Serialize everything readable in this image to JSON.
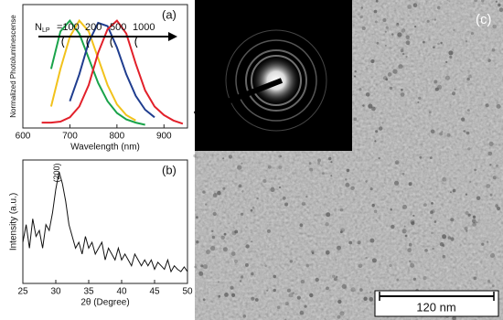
{
  "chart_data": [
    {
      "type": "line",
      "panel_label": "(a)",
      "x_label": "Wavelength (nm)",
      "y_label": "Normalized Photoluminescense",
      "annotation": {
        "symbol": "N",
        "subscript": "LP",
        "values": [
          "=100",
          "200",
          "500",
          "1000"
        ]
      },
      "x": [
        640,
        660,
        680,
        700,
        720,
        740,
        760,
        780,
        800,
        820,
        840,
        860,
        880,
        900,
        920,
        940
      ],
      "series": [
        {
          "color": "#1aa34a",
          "values": [
            null,
            0.55,
            0.9,
            1.0,
            0.88,
            0.65,
            0.42,
            0.25,
            0.14,
            0.08,
            0.05,
            0.03,
            null,
            null,
            null,
            null
          ]
        },
        {
          "color": "#f2c21b",
          "values": [
            null,
            0.2,
            0.55,
            0.85,
            1.0,
            0.9,
            0.65,
            0.4,
            0.22,
            0.12,
            0.07,
            null,
            null,
            null,
            null,
            null
          ]
        },
        {
          "color": "#1f3d8f",
          "values": [
            null,
            null,
            null,
            0.25,
            0.5,
            0.8,
            0.98,
            0.95,
            0.75,
            0.5,
            0.3,
            0.17,
            0.1,
            null,
            null,
            null
          ]
        },
        {
          "color": "#e2202a",
          "values": [
            0.05,
            0.05,
            0.06,
            0.1,
            0.2,
            0.4,
            0.7,
            0.92,
            1.0,
            0.88,
            0.6,
            0.35,
            0.2,
            0.12,
            0.07,
            0.04
          ]
        }
      ],
      "xlim": [
        600,
        950
      ],
      "xticks": [
        600,
        700,
        800,
        900
      ],
      "ylim": [
        0,
        1.15
      ]
    },
    {
      "type": "line",
      "panel_label": "(b)",
      "x_label": "2θ (Degree)",
      "y_label": "Intensity (a.u.)",
      "peak_label": "(200)",
      "x": [
        25,
        25.5,
        26,
        26.5,
        27,
        27.5,
        28,
        28.5,
        29,
        29.5,
        30,
        30.5,
        31,
        31.5,
        32,
        32.5,
        33,
        33.5,
        34,
        34.5,
        35,
        35.5,
        36,
        36.5,
        37,
        37.5,
        38,
        38.5,
        39,
        39.5,
        40,
        40.5,
        41,
        41.5,
        42,
        42.5,
        43,
        43.5,
        44,
        44.5,
        45,
        45.5,
        46,
        46.5,
        47,
        47.5,
        48,
        48.5,
        49,
        49.5,
        50
      ],
      "series": [
        {
          "color": "#111111",
          "values": [
            0.35,
            0.5,
            0.3,
            0.55,
            0.4,
            0.45,
            0.3,
            0.5,
            0.45,
            0.6,
            0.8,
            0.95,
            0.85,
            0.7,
            0.5,
            0.4,
            0.3,
            0.35,
            0.25,
            0.4,
            0.3,
            0.35,
            0.25,
            0.3,
            0.35,
            0.2,
            0.3,
            0.25,
            0.2,
            0.3,
            0.2,
            0.25,
            0.2,
            0.15,
            0.25,
            0.2,
            0.15,
            0.2,
            0.15,
            0.2,
            0.12,
            0.18,
            0.15,
            0.12,
            0.2,
            0.1,
            0.15,
            0.12,
            0.1,
            0.14,
            0.1
          ]
        }
      ],
      "xlim": [
        25,
        50
      ],
      "xticks": [
        25,
        30,
        35,
        40,
        45,
        50
      ],
      "ylim": [
        0,
        1.05
      ]
    }
  ],
  "image": {
    "panel_label": "(c)",
    "scale_bar": "120 nm"
  }
}
